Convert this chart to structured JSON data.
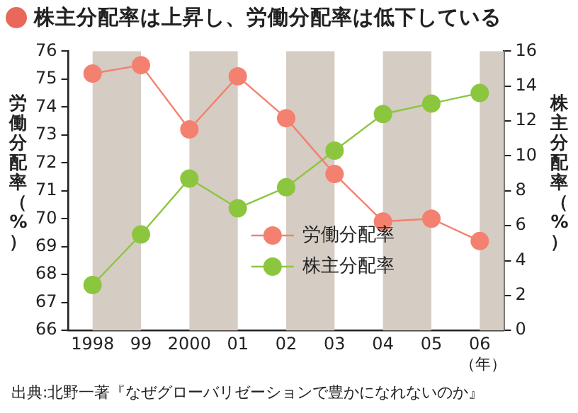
{
  "chart_data": {
    "type": "line",
    "title": "株主分配率は上昇し、労働分配率は低下している",
    "ylabel": "労働分配率（%）",
    "y2label": "株主分配率（%）",
    "xlabel": "（年）",
    "x": [
      1998,
      1999,
      2000,
      2001,
      2002,
      2003,
      2004,
      2005,
      2006
    ],
    "xlim": [
      1997.5,
      2006.5
    ],
    "xticks": [
      1998,
      {
        "value": 1999,
        "label": "99"
      },
      2000,
      {
        "value": 2001,
        "label": "01"
      },
      {
        "value": 2002,
        "label": "02"
      },
      {
        "value": 2003,
        "label": "03"
      },
      {
        "value": 2004,
        "label": "04"
      },
      {
        "value": 2005,
        "label": "05"
      },
      {
        "value": 2006,
        "label": "06"
      }
    ],
    "ylim": [
      66,
      76
    ],
    "yticks": [
      66,
      67,
      68,
      69,
      70,
      71,
      72,
      73,
      74,
      75,
      76
    ],
    "y2lim": [
      0,
      16
    ],
    "y2ticks": [
      0,
      2,
      4,
      6,
      8,
      10,
      12,
      14,
      16
    ],
    "series": [
      {
        "name": "労働分配率",
        "color": "#f4806f",
        "values": [
          75.2,
          75.5,
          73.2,
          75.1,
          73.6,
          71.6,
          69.9,
          70.0,
          69.2
        ]
      },
      {
        "name": "株主分配率",
        "color": "#8cc63f",
        "axis": "y2",
        "values": [
          2.6,
          5.5,
          8.7,
          7.0,
          8.2,
          10.3,
          12.4,
          13.0,
          13.6
        ]
      }
    ],
    "bands": [
      {
        "axis": "x",
        "from": 1998,
        "to": 1999,
        "color": "#d5ccc3"
      },
      {
        "axis": "x",
        "from": 2000,
        "to": 2001,
        "color": "#d5ccc3"
      },
      {
        "axis": "x",
        "from": 2002,
        "to": 2003,
        "color": "#d5ccc3"
      },
      {
        "axis": "x",
        "from": 2004,
        "to": 2005,
        "color": "#d5ccc3"
      },
      {
        "axis": "x",
        "from": 2006,
        "to": 2006.5,
        "color": "#d5ccc3"
      }
    ],
    "annotations": [
      "出典:北野一著『なぜグローバリゼーションで豊かになれないのか』"
    ],
    "legend": "bottom",
    "marker": "circle",
    "grid": false
  }
}
